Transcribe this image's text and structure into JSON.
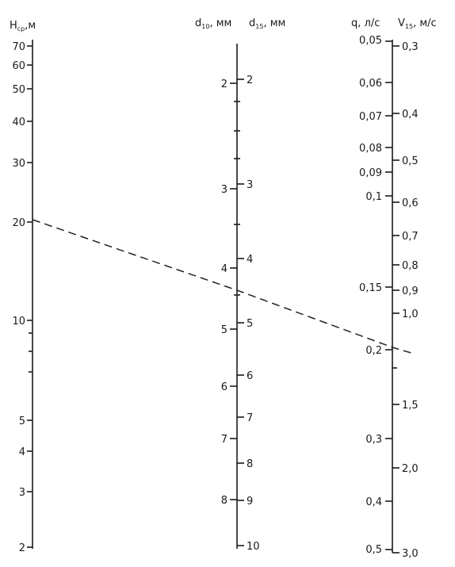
{
  "axes": {
    "h": {
      "header": {
        "main": "H",
        "sub": "ср",
        "unit": ",м"
      },
      "labels": [
        "70",
        "60",
        "50",
        "40",
        "30",
        "20",
        "10",
        "5",
        "4",
        "3",
        "2"
      ]
    },
    "d10": {
      "header": {
        "main": "d",
        "sub": "10",
        "unit": ", мм"
      },
      "labels": [
        "2",
        "3",
        "4",
        "5",
        "6",
        "7",
        "8"
      ]
    },
    "d15": {
      "header": {
        "main": "d",
        "sub": "15",
        "unit": ", мм"
      },
      "labels": [
        "2",
        "3",
        "4",
        "5",
        "6",
        "7",
        "8",
        "9",
        "10"
      ]
    },
    "q": {
      "header": {
        "main": "q",
        "unit": ", л/с"
      },
      "labels": [
        "0,05",
        "0,06",
        "0,07",
        "0,08",
        "0,09",
        "0,1",
        "0,15",
        "0,2",
        "0,3",
        "0,4",
        "0,5"
      ]
    },
    "v": {
      "header": {
        "main": "V",
        "sub": "15",
        "unit": ", м/с"
      },
      "labels": [
        "0,3",
        "0,4",
        "0,5",
        "0,6",
        "0,7",
        "0,8",
        "0,9",
        "1,0",
        "1,5",
        "2,0",
        "3,0"
      ]
    }
  },
  "example_line": {
    "style": "dashed",
    "h_value": 20,
    "q_value": 0.2
  }
}
